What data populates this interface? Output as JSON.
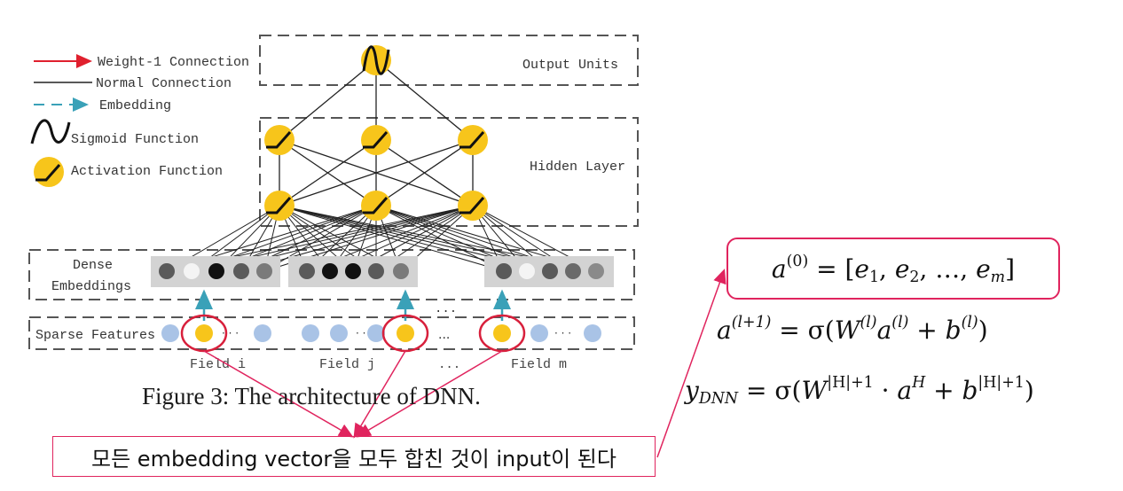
{
  "legend": {
    "weight1": "Weight-1 Connection",
    "normal": "Normal Connection",
    "embedding": "Embedding",
    "sigmoid": "Sigmoid Function",
    "activation": "Activation Function"
  },
  "layers": {
    "output": "Output Units",
    "hidden": "Hidden Layer",
    "dense_line1": "Dense",
    "dense_line2": "Embeddings",
    "sparse": "Sparse Features"
  },
  "fields": {
    "i": "Field i",
    "j": "Field j",
    "m": "Field m",
    "dots": "...",
    "small_dots": "· · ·"
  },
  "caption": "Figure 3: The architecture of DNN.",
  "note": "모든 embedding vector을 모두 합친 것이 input이 된다",
  "equations": {
    "a0_lhs": "a",
    "a0_sup": "(0)",
    "a0_rhs_prefix": " = [",
    "e": "e",
    "sub1": "1",
    "sub2": "2",
    "subm": "m",
    "sep": ", ",
    "ellipsis": "…",
    "close": "]",
    "al_sup_l1": "(l+1)",
    "al_sup_l": "(l)",
    "al_mid": " = σ(",
    "W": "W",
    "b": "b",
    "plus": " + ",
    "rparen": ")",
    "y": "y",
    "y_sub": "DNN",
    "y_mid": " = σ(",
    "W_sup": "|H|+1",
    "dot": " · ",
    "a": "a",
    "aH_sup": "H",
    "b_sup": "|H|+1",
    "y_end": ")"
  },
  "colors": {
    "neuron": "#f7c51b",
    "accent": "#e0245e",
    "embedding_arrow": "#3aa1b8",
    "weight1_arrow": "#e0202e",
    "sparse_node": "#a9c3e6",
    "dense_panel": "#d3d3d3"
  }
}
